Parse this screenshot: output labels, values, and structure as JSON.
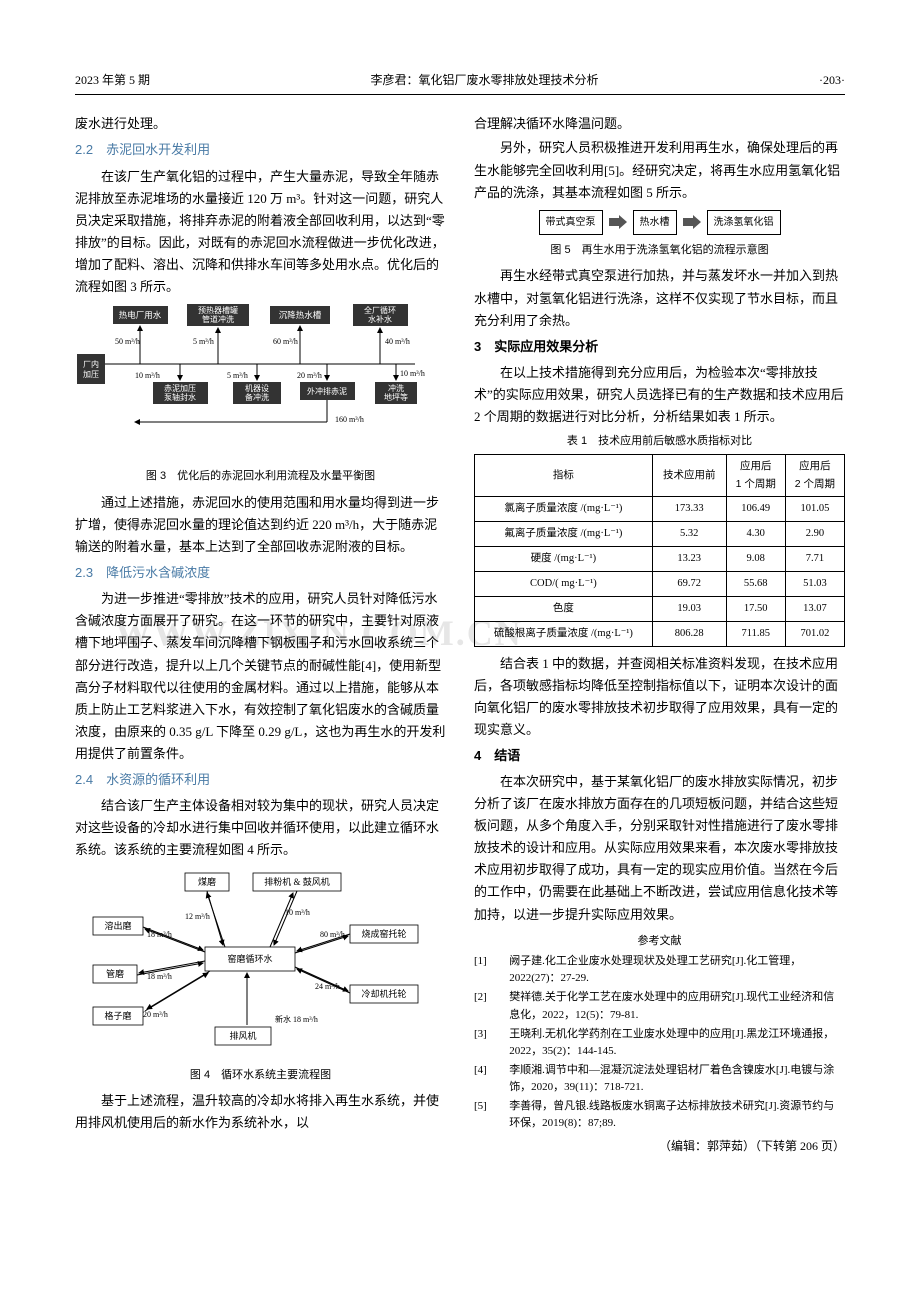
{
  "header": {
    "left": "2023 年第 5 期",
    "center": "李彦君：氧化铝厂废水零排放处理技术分析",
    "right": "·203·"
  },
  "col1": {
    "p0": "废水进行处理。",
    "h22": "2.2　赤泥回水开发利用",
    "p22_1": "在该厂生产氧化铝的过程中，产生大量赤泥，导致全年随赤泥排放至赤泥堆场的水量接近 120 万 m³。针对这一问题，研究人员决定采取措施，将排弃赤泥的附着液全部回收利用，以达到“零排放”的目标。因此，对既有的赤泥回水流程做进一步优化改进，增加了配料、溶出、沉降和供排水车间等多处用水点。优化后的流程如图 3 所示。",
    "fig3_cap": "图 3　优化后的赤泥回水利用流程及水量平衡图",
    "p22_2": "通过上述措施，赤泥回水的使用范围和用水量均得到进一步扩增，使得赤泥回水量的理论值达到约近 220 m³/h，大于随赤泥输送的附着水量，基本上达到了全部回收赤泥附液的目标。",
    "h23": "2.3　降低污水含碱浓度",
    "p23_1": "为进一步推进“零排放”技术的应用，研究人员针对降低污水含碱浓度方面展开了研究。在这一环节的研究中，主要针对原液槽下地坪围子、蒸发车间沉降槽下钢板围子和污水回收系统三个部分进行改造，提升以上几个关键节点的耐碱性能[4]，使用新型高分子材料取代以往使用的金属材料。通过以上措施，能够从本质上防止工艺料浆进入下水，有效控制了氧化铝废水的含碱质量浓度，由原来的 0.35 g/L 下降至 0.29 g/L，这也为再生水的开发利用提供了前置条件。",
    "h24": "2.4　水资源的循环利用",
    "p24_1": "结合该厂生产主体设备相对较为集中的现状，研究人员决定对这些设备的冷却水进行集中回收并循环使用，以此建立循环水系统。该系统的主要流程如图 4 所示。",
    "fig4_cap": "图 4　循环水系统主要流程图",
    "p24_2": "基于上述流程，温升较高的冷却水将排入再生水系统，并使用排风机使用后的新水作为系统补水，以"
  },
  "col2": {
    "p25_1": "合理解决循环水降温问题。",
    "p25_2": "另外，研究人员积极推进开发利用再生水，确保处理后的再生水能够完全回收利用[5]。经研究决定，将再生水应用氢氧化铝产品的洗涤，其基本流程如图 5 所示。",
    "fig5_cap": "图 5　再生水用于洗涤氢氧化铝的流程示意图",
    "p25_3": "再生水经带式真空泵进行加热，并与蒸发坏水一并加入到热水槽中，对氢氧化铝进行洗涤，这样不仅实现了节水目标，而且充分利用了余热。",
    "h3": "3　实际应用效果分析",
    "p3_1": "在以上技术措施得到充分应用后，为检验本次“零排放技术”的实际应用效果，研究人员选择已有的生产数据和技术应用后 2 个周期的数据进行对比分析，分析结果如表 1 所示。",
    "tab1_cap": "表 1　技术应用前后敏感水质指标对比",
    "p3_2": "结合表 1 中的数据，并查阅相关标准资料发现，在技术应用后，各项敏感指标均降低至控制指标值以下，证明本次设计的面向氧化铝厂的废水零排放技术初步取得了应用效果，具有一定的现实意义。",
    "h4": "4　结语",
    "p4_1": "在本次研究中，基于某氧化铝厂的废水排放实际情况，初步分析了该厂在废水排放方面存在的几项短板问题，并结合这些短板问题，从多个角度入手，分别采取针对性措施进行了废水零排放技术的设计和应用。从实际应用效果来看，本次废水零排放技术应用初步取得了成功，具有一定的现实应用价值。当然在今后的工作中，仍需要在此基础上不断改进，尝试应用信息化技术等加持，以进一步提升实际应用效果。",
    "ref_h": "参考文献",
    "refs": [
      "阙子建.化工企业废水处理现状及处理工艺研究[J].化工管理，2022(27)：27-29.",
      "樊祥德.关于化学工艺在废水处理中的应用研究[J].现代工业经济和信息化，2022，12(5)：79-81.",
      "王晓利.无机化学药剂在工业废水处理中的应用[J].黑龙江环境通报，2022，35(2)：144-145.",
      "李顺湘.调节中和—混凝沉淀法处理铝材厂着色含镍废水[J].电镀与涂饰，2020，39(11)：718-721.",
      "李善得，曾凡银.线路板废水铜离子达标排放技术研究[J].资源节约与环保，2019(8)：87;89."
    ],
    "editor": "（编辑：郭萍茹）（下转第 206 页）"
  },
  "fig3": {
    "top_boxes": [
      "热电厂用水",
      "预热器槽罐\n管道冲洗",
      "沉降热水槽",
      "全厂循环\n水补水"
    ],
    "bot_boxes": [
      "厂内\n加压",
      "赤泥加压\n泵轴封水",
      "机器设\n备冲洗",
      "外冲排赤泥",
      "冲洗\n地坪等"
    ],
    "labels": [
      "50 m³/h",
      "5 m³/h",
      "60 m³/h",
      "40 m³/h",
      "10 m³/h",
      "5 m³/h",
      "20 m³/h",
      "10 m³/h",
      "160 m³/h"
    ],
    "colors": {
      "box_bg": "#333333",
      "box_fg": "#ffffff",
      "line": "#000000"
    }
  },
  "fig4": {
    "center": "窑磨循环水",
    "nodes": [
      "煤磨",
      "排粉机 & 鼓风机",
      "溶出磨",
      "管磨",
      "格子磨",
      "排风机",
      "冷却机托轮",
      "烧成窑托轮"
    ],
    "labels": [
      "12 m³/h",
      "10 m³/h",
      "18 m³/h",
      "18 m³/h",
      "20 m³/h",
      "新水  18 m³/h",
      "24 m³/h",
      "80 m³/h"
    ]
  },
  "fig5": {
    "boxes": [
      "带式真空泵",
      "热水槽",
      "洗涤氢氧化铝"
    ]
  },
  "table1": {
    "headers": [
      "指标",
      "技术应用前",
      "应用后\n1 个周期",
      "应用后\n2 个周期"
    ],
    "rows": [
      [
        "氯离子质量浓度 /(mg·L⁻¹)",
        "173.33",
        "106.49",
        "101.05"
      ],
      [
        "氟离子质量浓度 /(mg·L⁻¹)",
        "5.32",
        "4.30",
        "2.90"
      ],
      [
        "硬度 /(mg·L⁻¹)",
        "13.23",
        "9.08",
        "7.71"
      ],
      [
        "COD/( mg·L⁻¹)",
        "69.72",
        "55.68",
        "51.03"
      ],
      [
        "色度",
        "19.03",
        "17.50",
        "13.07"
      ],
      [
        "硫酸根离子质量浓度 /(mg·L⁻¹)",
        "806.28",
        "711.85",
        "701.02"
      ]
    ]
  },
  "watermark": "WWW.ZIXIN.COM.CN"
}
